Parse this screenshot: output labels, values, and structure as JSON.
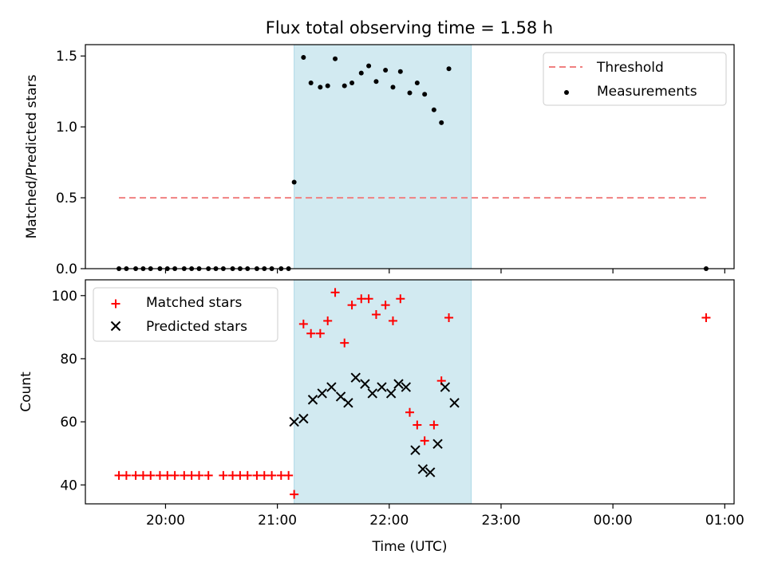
{
  "title": "Flux total observing time = 1.58 h",
  "colors": {
    "threshold": "#f08080",
    "measurements": "#000000",
    "matched": "#ff0000",
    "predicted": "#000000",
    "shade": "#add8e6"
  },
  "chart_data": [
    {
      "type": "scatter",
      "ylabel": "Matched/Predicted stars",
      "xlim": [
        "19:17",
        "01:05"
      ],
      "ylim": [
        0,
        1.58
      ],
      "yticks": [
        "0.0",
        "0.5",
        "1.0",
        "1.5"
      ],
      "yticks_values": [
        0,
        0.5,
        1.0,
        1.5
      ],
      "shaded_interval": [
        "21:09",
        "22:44"
      ],
      "legend_position": "upper right",
      "legend": [
        {
          "key": "threshold",
          "label": "Threshold"
        },
        {
          "key": "measurements",
          "label": "Measurements"
        }
      ],
      "threshold": {
        "name": "Threshold",
        "x": [
          "19:35",
          "00:50"
        ],
        "y": 0.5
      },
      "series": [
        {
          "name": "Measurements",
          "marker": "dot",
          "x": [
            "19:35",
            "19:39",
            "19:44",
            "19:48",
            "19:52",
            "19:57",
            "20:01",
            "20:05",
            "20:10",
            "20:14",
            "20:18",
            "20:23",
            "20:27",
            "20:31",
            "20:36",
            "20:40",
            "20:44",
            "20:49",
            "20:53",
            "20:57",
            "21:02",
            "21:06",
            "21:09",
            "21:14",
            "21:18",
            "21:23",
            "21:27",
            "21:31",
            "21:36",
            "21:40",
            "21:45",
            "21:49",
            "21:53",
            "21:58",
            "22:02",
            "22:06",
            "22:11",
            "22:15",
            "22:19",
            "22:24",
            "22:28",
            "22:32",
            "22:37",
            "22:41",
            "22:45",
            "00:50"
          ],
          "y": [
            0,
            0,
            0,
            0,
            0,
            0,
            0,
            0,
            0,
            0,
            0,
            0,
            0,
            0,
            0,
            0,
            0,
            0,
            0,
            0,
            0,
            0,
            0.61,
            1.49,
            1.31,
            1.28,
            1.29,
            1.48,
            1.29,
            1.31,
            1.38,
            1.43,
            1.32,
            1.4,
            1.28,
            1.39,
            1.24,
            1.31,
            1.23,
            1.12,
            1.03,
            1.41,
            null,
            null,
            null,
            0
          ]
        }
      ]
    },
    {
      "type": "scatter",
      "xlabel": "Time (UTC)",
      "ylabel": "Count",
      "xlim": [
        "19:17",
        "01:05"
      ],
      "ylim": [
        34,
        105
      ],
      "xticks": [
        "20:00",
        "21:00",
        "22:00",
        "23:00",
        "00:00",
        "01:00"
      ],
      "yticks": [
        "40",
        "60",
        "80",
        "100"
      ],
      "yticks_values": [
        40,
        60,
        80,
        100
      ],
      "shaded_interval": [
        "21:09",
        "22:44"
      ],
      "legend_position": "upper left",
      "legend": [
        {
          "key": "matched",
          "label": "Matched stars"
        },
        {
          "key": "predicted",
          "label": "Predicted stars"
        }
      ],
      "series": [
        {
          "name": "Matched stars",
          "marker": "plus",
          "x": [
            "19:35",
            "19:39",
            "19:44",
            "19:48",
            "19:52",
            "19:57",
            "20:01",
            "20:05",
            "20:10",
            "20:14",
            "20:18",
            "20:23",
            "20:31",
            "20:36",
            "20:40",
            "20:44",
            "20:49",
            "20:53",
            "20:57",
            "21:02",
            "21:06",
            "21:09",
            "21:14",
            "21:18",
            "21:23",
            "21:27",
            "21:31",
            "21:36",
            "21:40",
            "21:45",
            "21:49",
            "21:53",
            "21:58",
            "22:02",
            "22:06",
            "22:11",
            "22:15",
            "22:19",
            "22:24",
            "22:28",
            "22:32",
            "22:37",
            "22:41",
            "22:45",
            "00:50"
          ],
          "y": [
            43,
            43,
            43,
            43,
            43,
            43,
            43,
            43,
            43,
            43,
            43,
            43,
            43,
            43,
            43,
            43,
            43,
            43,
            43,
            43,
            43,
            37,
            91,
            88,
            88,
            92,
            101,
            85,
            97,
            99,
            99,
            94,
            97,
            92,
            99,
            63,
            59,
            54,
            59,
            73,
            93,
            null,
            null,
            null,
            93
          ]
        },
        {
          "name": "Predicted stars",
          "marker": "x",
          "x": [
            "21:09",
            "21:14",
            "21:19",
            "21:24",
            "21:29",
            "21:34",
            "21:38",
            "21:42",
            "21:47",
            "21:51",
            "21:56",
            "22:01",
            "22:05",
            "22:09",
            "22:14",
            "22:18",
            "22:22",
            "22:26",
            "22:30",
            "22:35"
          ],
          "y": [
            60,
            61,
            67,
            69,
            71,
            68,
            66,
            74,
            72,
            69,
            71,
            69,
            72,
            71,
            51,
            45,
            44,
            53,
            71,
            66
          ]
        }
      ]
    }
  ]
}
